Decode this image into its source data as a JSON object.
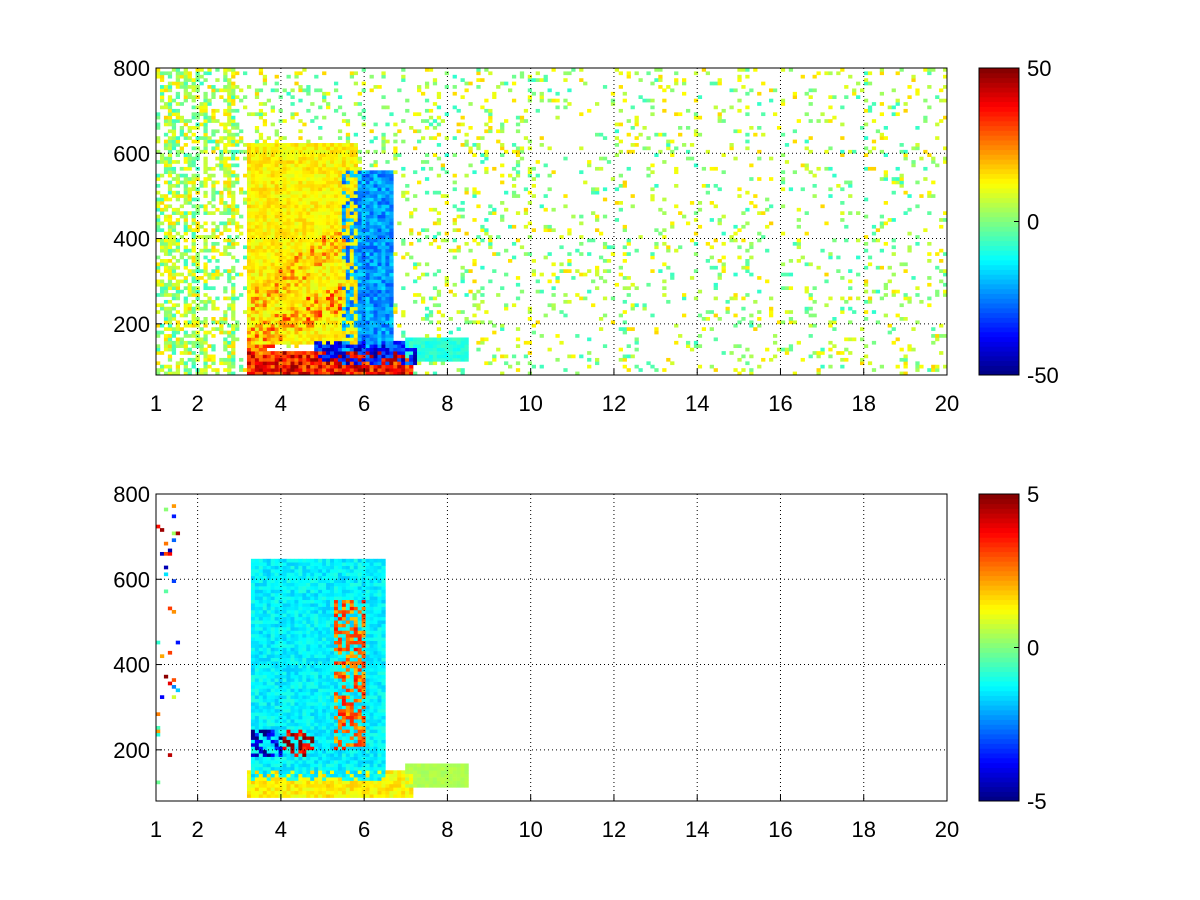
{
  "chart_data": [
    {
      "type": "heatmap",
      "title": "",
      "xlabel": "",
      "ylabel": "",
      "x_ticks": [
        1,
        2,
        4,
        6,
        8,
        10,
        12,
        14,
        16,
        18,
        20
      ],
      "y_ticks": [
        200,
        400,
        600,
        800
      ],
      "xlim": [
        1,
        20
      ],
      "ylim": [
        80,
        800
      ],
      "grid": true,
      "colormap": "jet",
      "colorbar": {
        "ticks": [
          "50",
          "0",
          "-50"
        ],
        "range": [
          -50,
          50
        ]
      },
      "features": [
        {
          "description": "strong positive band",
          "x_range": [
            3.2,
            7.2
          ],
          "y_center": 110,
          "value": 40
        },
        {
          "description": "negative core",
          "x_range": [
            4.8,
            7.3
          ],
          "y_center": 130,
          "value": -40
        },
        {
          "description": "positive ridge",
          "x_range": [
            3.2,
            5.5
          ],
          "y_center_start": 150,
          "y_center_end": 270,
          "value": 30
        },
        {
          "description": "positive ridge",
          "x_range": [
            3.3,
            5.6
          ],
          "y_center_start": 240,
          "y_center_end": 420,
          "value": 25
        },
        {
          "description": "positive envelope",
          "x_range": [
            3.2,
            5.8
          ],
          "y_range": [
            150,
            620
          ],
          "value": 15
        },
        {
          "description": "negative column",
          "x_range": [
            5.5,
            6.7
          ],
          "y_range": [
            140,
            560
          ],
          "value": -25
        },
        {
          "description": "tail",
          "x_range": [
            7.0,
            8.5
          ],
          "y_center": 140,
          "value": -10
        }
      ],
      "background": "sparse scattered values near zero (range -10 to +15) with vertical striping"
    },
    {
      "type": "heatmap",
      "title": "",
      "xlabel": "",
      "ylabel": "",
      "x_ticks": [
        1,
        2,
        4,
        6,
        8,
        10,
        12,
        14,
        16,
        18,
        20
      ],
      "y_ticks": [
        200,
        400,
        600,
        800
      ],
      "xlim": [
        1,
        20
      ],
      "ylim": [
        80,
        800
      ],
      "grid": true,
      "colormap": "jet",
      "colorbar": {
        "ticks": [
          "5",
          "0",
          "-5"
        ],
        "range": [
          -5,
          5
        ]
      },
      "features": [
        {
          "description": "mixed band",
          "x_range": [
            3.2,
            7.2
          ],
          "y_center": 120,
          "value": 1.5
        },
        {
          "description": "negative patch",
          "x_range": [
            3.3,
            4.0
          ],
          "y_center": 215,
          "value": -5
        },
        {
          "description": "positive patch",
          "x_range": [
            4.0,
            4.8
          ],
          "y_center": 215,
          "value": 5
        },
        {
          "description": "positive streak",
          "x_range": [
            5.3,
            6.0
          ],
          "y_range": [
            200,
            550
          ],
          "value": 3
        },
        {
          "description": "cyan plume",
          "x_range": [
            3.3,
            6.5
          ],
          "y_range": [
            130,
            650
          ],
          "value": -1.5
        },
        {
          "description": "tail",
          "x_range": [
            7.0,
            8.5
          ],
          "y_center": 140,
          "value": 0.5
        }
      ],
      "background": "empty (NaN) except isolated streaks"
    }
  ]
}
